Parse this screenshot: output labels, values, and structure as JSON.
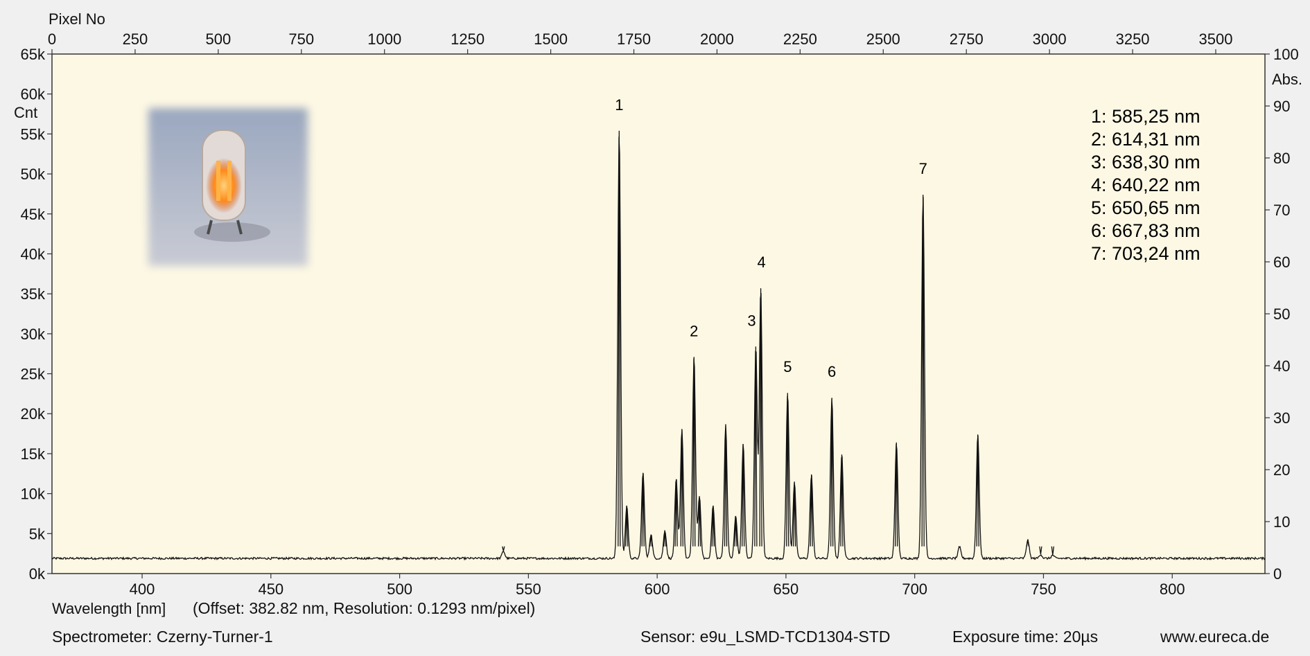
{
  "colors": {
    "plot_background": "#fdf8e4",
    "page_background": "#f0f0f0",
    "trace": "#111111",
    "lamp_glow": "#ff8a1a"
  },
  "inset_image": {
    "icon": "neon-lamp-photo",
    "description_shown": false
  },
  "footer": {
    "wavelength_axis_label": "Wavelength [nm]",
    "offset_resolution": "(Offset: 382.82 nm, Resolution: 0.1293 nm/pixel)",
    "spectrometer": "Spectrometer: Czerny-Turner-1",
    "sensor": "Sensor: e9u_LSMD-TCD1304-STD",
    "exposure": "Exposure time: 20µs",
    "website": "www.eureca.de"
  },
  "chart_data": {
    "type": "line",
    "title": "",
    "xlabel": "Wavelength [nm]",
    "x2label": "Pixel No",
    "ylabel": "Cnt",
    "y2label": "Abs.",
    "xlim": [
      365,
      836
    ],
    "x2lim": [
      0,
      3648
    ],
    "ylim": [
      0,
      65000
    ],
    "y2lim": [
      0,
      100
    ],
    "grid": false,
    "legend": "none",
    "x_ticks": [
      400,
      450,
      500,
      550,
      600,
      650,
      700,
      750,
      800
    ],
    "x2_ticks": [
      0,
      250,
      500,
      750,
      1000,
      1250,
      1500,
      1750,
      2000,
      2250,
      2500,
      2750,
      3000,
      3250,
      3500
    ],
    "y_ticks": [
      "0k",
      "5k",
      "10k",
      "15k",
      "20k",
      "25k",
      "30k",
      "35k",
      "40k",
      "45k",
      "50k",
      "55k",
      "60k",
      "65k"
    ],
    "y2_ticks": [
      0,
      10,
      20,
      30,
      40,
      50,
      60,
      70,
      80,
      90,
      100
    ],
    "baseline": 1900,
    "peaks": [
      {
        "x": 540.3,
        "y": 2800
      },
      {
        "x": 585.25,
        "y": 55400,
        "label": "1"
      },
      {
        "x": 588.2,
        "y": 8500
      },
      {
        "x": 594.5,
        "y": 12600
      },
      {
        "x": 597.6,
        "y": 4900
      },
      {
        "x": 603.0,
        "y": 5400
      },
      {
        "x": 607.4,
        "y": 11800
      },
      {
        "x": 609.6,
        "y": 18100
      },
      {
        "x": 614.31,
        "y": 27100,
        "label": "2"
      },
      {
        "x": 616.4,
        "y": 9700
      },
      {
        "x": 621.7,
        "y": 8500
      },
      {
        "x": 626.6,
        "y": 18600
      },
      {
        "x": 630.5,
        "y": 7200
      },
      {
        "x": 633.4,
        "y": 16200
      },
      {
        "x": 638.3,
        "y": 28400,
        "label": "3"
      },
      {
        "x": 640.22,
        "y": 35700,
        "label": "4"
      },
      {
        "x": 650.65,
        "y": 22600,
        "label": "5"
      },
      {
        "x": 653.3,
        "y": 11500
      },
      {
        "x": 659.9,
        "y": 12400
      },
      {
        "x": 667.83,
        "y": 22000,
        "label": "6"
      },
      {
        "x": 671.7,
        "y": 14900
      },
      {
        "x": 692.9,
        "y": 16400
      },
      {
        "x": 703.24,
        "y": 47400,
        "label": "7"
      },
      {
        "x": 717.4,
        "y": 3300
      },
      {
        "x": 724.5,
        "y": 17400
      },
      {
        "x": 743.9,
        "y": 4200
      },
      {
        "x": 748.9,
        "y": 2400
      },
      {
        "x": 753.6,
        "y": 2300
      }
    ],
    "annotations": [
      "1: 585,25 nm",
      "2: 614,31 nm",
      "3: 638,30 nm",
      "4: 640,22 nm",
      "5: 650,65 nm",
      "6: 667,83 nm",
      "7: 703,24 nm"
    ]
  }
}
